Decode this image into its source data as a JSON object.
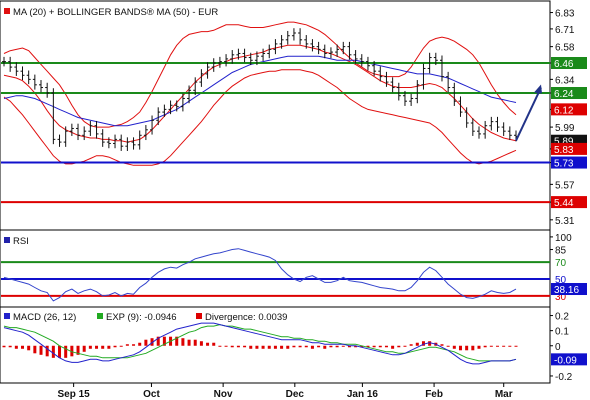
{
  "colors": {
    "ma20": "#e01010",
    "bollinger": "#e01010",
    "ma50": "#2222cc",
    "price": "#111111",
    "support_green": "#1a8a1a",
    "blue_line": "#1010cc",
    "red_line": "#dd0000",
    "arrow": "#223388",
    "rsi_line": "#3344cc",
    "macd_line": "#2222cc",
    "signal_line": "#22aa22",
    "divergence": "#dd0000",
    "frame": "#000000"
  },
  "chart_data": [
    {
      "type": "line",
      "title": "MA (20) + BOLLINGER BANDS® MA (50) - EUR",
      "legend": [
        "MA (20) + BOLLINGER BANDS®",
        "MA (50) - EUR"
      ],
      "legend_placement": "top-left",
      "ylim": [
        5.25,
        6.9
      ],
      "y_ticks": [
        6.83,
        6.71,
        6.58,
        6.46,
        6.34,
        6.24,
        6.12,
        5.99,
        5.83,
        5.73,
        5.57,
        5.44,
        5.31
      ],
      "x_ticks": [
        "Sep 15",
        "Oct",
        "Nov",
        "Dec",
        "Jan 16",
        "Feb",
        "Mar"
      ],
      "x_tick_pos": [
        0.17,
        0.36,
        0.535,
        0.71,
        0.875,
        1.05,
        1.22
      ],
      "horizontal_lines": [
        {
          "label": "6.46",
          "value": 6.46,
          "color": "#1a8a1a"
        },
        {
          "label": "6.24",
          "value": 6.24,
          "color": "#1a8a1a"
        },
        {
          "label": "5.73",
          "value": 5.73,
          "color": "#1010cc"
        },
        {
          "label": "5.44",
          "value": 5.44,
          "color": "#dd0000"
        }
      ],
      "value_tags": [
        {
          "label": "6.12",
          "value": 6.12,
          "color": "#dd0000"
        },
        {
          "label": "5.89",
          "value": 5.89,
          "color": "#111111"
        },
        {
          "label": "5.83",
          "value": 5.83,
          "color": "#dd0000"
        }
      ],
      "close": [
        6.47,
        6.43,
        6.4,
        6.37,
        6.34,
        6.3,
        6.28,
        6.24,
        5.9,
        5.88,
        5.96,
        5.98,
        5.93,
        5.96,
        6.0,
        5.94,
        5.88,
        5.87,
        5.9,
        5.85,
        5.88,
        5.86,
        5.93,
        5.97,
        6.04,
        6.1,
        6.12,
        6.15,
        6.14,
        6.2,
        6.26,
        6.32,
        6.38,
        6.43,
        6.46,
        6.47,
        6.49,
        6.52,
        6.53,
        6.5,
        6.48,
        6.51,
        6.53,
        6.56,
        6.6,
        6.63,
        6.66,
        6.68,
        6.63,
        6.6,
        6.58,
        6.56,
        6.53,
        6.54,
        6.56,
        6.58,
        6.52,
        6.49,
        6.47,
        6.44,
        6.4,
        6.36,
        6.32,
        6.28,
        6.22,
        6.18,
        6.2,
        6.3,
        6.42,
        6.5,
        6.48,
        6.36,
        6.28,
        6.18,
        6.1,
        6.02,
        5.96,
        5.94,
        6.0,
        6.03,
        5.99,
        5.96,
        5.93,
        5.92
      ],
      "ma20": [
        6.37,
        6.36,
        6.35,
        6.33,
        6.29,
        6.24,
        6.18,
        6.11,
        6.05,
        6.0,
        5.97,
        5.95,
        5.93,
        5.92,
        5.91,
        5.91,
        5.9,
        5.9,
        5.89,
        5.89,
        5.88,
        5.89,
        5.9,
        5.93,
        5.97,
        6.02,
        6.07,
        6.12,
        6.17,
        6.22,
        6.27,
        6.32,
        6.36,
        6.4,
        6.43,
        6.45,
        6.47,
        6.49,
        6.5,
        6.51,
        6.52,
        6.53,
        6.54,
        6.56,
        6.57,
        6.58,
        6.59,
        6.59,
        6.59,
        6.58,
        6.57,
        6.56,
        6.54,
        6.53,
        6.51,
        6.49,
        6.47,
        6.45,
        6.42,
        6.39,
        6.36,
        6.33,
        6.31,
        6.29,
        6.28,
        6.28,
        6.28,
        6.29,
        6.3,
        6.31,
        6.3,
        6.28,
        6.24,
        6.2,
        6.15,
        6.1,
        6.05,
        6.01,
        5.98,
        5.95,
        5.93,
        5.91,
        5.9,
        5.89
      ],
      "bb_upper": [
        6.53,
        6.55,
        6.56,
        6.57,
        6.55,
        6.5,
        6.45,
        6.4,
        6.35,
        6.3,
        6.23,
        6.15,
        6.08,
        6.03,
        6.0,
        5.99,
        5.99,
        5.99,
        6.0,
        6.01,
        6.03,
        6.06,
        6.1,
        6.17,
        6.25,
        6.34,
        6.43,
        6.52,
        6.59,
        6.64,
        6.67,
        6.68,
        6.69,
        6.69,
        6.7,
        6.72,
        6.74,
        6.74,
        6.74,
        6.73,
        6.72,
        6.72,
        6.72,
        6.73,
        6.74,
        6.75,
        6.76,
        6.76,
        6.75,
        6.74,
        6.72,
        6.7,
        6.67,
        6.63,
        6.59,
        6.54,
        6.5,
        6.46,
        6.43,
        6.4,
        6.38,
        6.37,
        6.36,
        6.36,
        6.36,
        6.38,
        6.43,
        6.5,
        6.57,
        6.62,
        6.64,
        6.65,
        6.64,
        6.62,
        6.59,
        6.56,
        6.52,
        6.46,
        6.38,
        6.3,
        6.23,
        6.17,
        6.12,
        6.08
      ],
      "bb_lower": [
        6.21,
        6.18,
        6.13,
        6.08,
        6.02,
        5.96,
        5.9,
        5.84,
        5.78,
        5.74,
        5.72,
        5.72,
        5.73,
        5.74,
        5.76,
        5.78,
        5.78,
        5.77,
        5.75,
        5.73,
        5.72,
        5.71,
        5.71,
        5.71,
        5.71,
        5.72,
        5.74,
        5.78,
        5.83,
        5.88,
        5.93,
        5.98,
        6.03,
        6.09,
        6.15,
        6.2,
        6.25,
        6.29,
        6.32,
        6.35,
        6.37,
        6.38,
        6.39,
        6.4,
        6.4,
        6.41,
        6.41,
        6.41,
        6.41,
        6.4,
        6.39,
        6.37,
        6.34,
        6.31,
        6.28,
        6.24,
        6.2,
        6.17,
        6.14,
        6.12,
        6.11,
        6.1,
        6.09,
        6.08,
        6.07,
        6.06,
        6.05,
        6.04,
        6.03,
        6.02,
        5.99,
        5.95,
        5.9,
        5.85,
        5.8,
        5.76,
        5.73,
        5.72,
        5.73,
        5.74,
        5.76,
        5.78,
        5.8,
        5.82
      ],
      "ma50": [
        6.2,
        6.21,
        6.22,
        6.22,
        6.21,
        6.2,
        6.18,
        6.16,
        6.14,
        6.12,
        6.1,
        6.08,
        6.06,
        6.05,
        6.04,
        6.03,
        6.02,
        6.01,
        6.0,
        6.0,
        6.0,
        6.01,
        6.02,
        6.03,
        6.04,
        6.06,
        6.08,
        6.1,
        6.12,
        6.15,
        6.18,
        6.21,
        6.24,
        6.27,
        6.3,
        6.33,
        6.36,
        6.39,
        6.41,
        6.43,
        6.45,
        6.46,
        6.47,
        6.48,
        6.49,
        6.5,
        6.51,
        6.51,
        6.51,
        6.51,
        6.51,
        6.51,
        6.5,
        6.49,
        6.48,
        6.48,
        6.48,
        6.48,
        6.47,
        6.46,
        6.45,
        6.44,
        6.43,
        6.42,
        6.41,
        6.4,
        6.39,
        6.38,
        6.38,
        6.38,
        6.37,
        6.36,
        6.35,
        6.33,
        6.31,
        6.29,
        6.27,
        6.25,
        6.23,
        6.21,
        6.2,
        6.19,
        6.18,
        6.17
      ],
      "arrow": {
        "from": 5.89,
        "to": 6.28
      }
    },
    {
      "type": "line",
      "title": "RSI",
      "legend": [
        "RSI"
      ],
      "ylim": [
        18,
        107
      ],
      "y_ticks": [
        100,
        85,
        70,
        50,
        38.16,
        30
      ],
      "horizontal_lines": [
        {
          "label": "70",
          "value": 70,
          "color": "#1a8a1a"
        },
        {
          "label": "50",
          "value": 50,
          "color": "#1010cc"
        },
        {
          "label": "30",
          "value": 30,
          "color": "#dd0000"
        }
      ],
      "value_tags": [
        {
          "label": "38.16",
          "value": 38.16,
          "color": "#1010cc"
        }
      ],
      "values": [
        52,
        50,
        48,
        46,
        44,
        40,
        36,
        34,
        24,
        28,
        35,
        38,
        33,
        36,
        38,
        35,
        30,
        31,
        34,
        30,
        33,
        32,
        40,
        45,
        52,
        58,
        62,
        64,
        63,
        67,
        70,
        74,
        76,
        78,
        80,
        81,
        83,
        85,
        86,
        84,
        82,
        80,
        78,
        76,
        72,
        62,
        55,
        50,
        47,
        52,
        54,
        50,
        46,
        46,
        48,
        52,
        48,
        47,
        46,
        44,
        42,
        40,
        39,
        38,
        36,
        36,
        40,
        48,
        58,
        64,
        60,
        52,
        44,
        38,
        32,
        28,
        27,
        29,
        32,
        36,
        34,
        33,
        34,
        38
      ]
    },
    {
      "type": "bar",
      "title": "MACD (26, 12)",
      "legend": [
        "MACD (26, 12)",
        "EXP (9): -0.0946",
        "Divergence: 0.0039"
      ],
      "ylim": [
        -0.24,
        0.25
      ],
      "y_ticks": [
        0.2,
        0.1,
        0,
        -0.09,
        -0.2
      ],
      "value_tags": [
        {
          "label": "-0.09",
          "value": -0.09,
          "color": "#1010cc"
        }
      ],
      "macd": [
        0.12,
        0.11,
        0.1,
        0.09,
        0.07,
        0.04,
        0.01,
        -0.02,
        -0.05,
        -0.08,
        -0.1,
        -0.11,
        -0.11,
        -0.1,
        -0.09,
        -0.09,
        -0.1,
        -0.1,
        -0.09,
        -0.08,
        -0.07,
        -0.06,
        -0.04,
        -0.01,
        0.02,
        0.05,
        0.07,
        0.09,
        0.11,
        0.12,
        0.13,
        0.14,
        0.15,
        0.15,
        0.15,
        0.14,
        0.13,
        0.12,
        0.11,
        0.1,
        0.09,
        0.08,
        0.07,
        0.06,
        0.05,
        0.04,
        0.04,
        0.04,
        0.04,
        0.03,
        0.02,
        0.02,
        0.01,
        0.01,
        0.01,
        0.01,
        0.0,
        0.0,
        -0.01,
        -0.02,
        -0.03,
        -0.04,
        -0.05,
        -0.06,
        -0.06,
        -0.05,
        -0.03,
        -0.01,
        0.01,
        0.02,
        0.01,
        -0.01,
        -0.03,
        -0.06,
        -0.09,
        -0.11,
        -0.12,
        -0.12,
        -0.11,
        -0.1,
        -0.1,
        -0.1,
        -0.1,
        -0.09
      ],
      "signal": [
        0.13,
        0.12,
        0.12,
        0.11,
        0.1,
        0.09,
        0.07,
        0.05,
        0.03,
        0.0,
        -0.02,
        -0.04,
        -0.05,
        -0.06,
        -0.07,
        -0.07,
        -0.08,
        -0.08,
        -0.08,
        -0.08,
        -0.08,
        -0.07,
        -0.06,
        -0.05,
        -0.03,
        -0.01,
        0.01,
        0.03,
        0.05,
        0.07,
        0.09,
        0.1,
        0.12,
        0.13,
        0.13,
        0.14,
        0.13,
        0.13,
        0.12,
        0.11,
        0.11,
        0.1,
        0.09,
        0.08,
        0.07,
        0.06,
        0.06,
        0.05,
        0.05,
        0.04,
        0.04,
        0.03,
        0.03,
        0.02,
        0.02,
        0.01,
        0.01,
        0.01,
        0.0,
        -0.01,
        -0.02,
        -0.03,
        -0.04,
        -0.04,
        -0.05,
        -0.05,
        -0.04,
        -0.03,
        -0.02,
        -0.01,
        -0.01,
        -0.02,
        -0.03,
        -0.04,
        -0.06,
        -0.08,
        -0.09,
        -0.1,
        -0.1,
        -0.1,
        -0.1,
        -0.1,
        -0.1,
        -0.09
      ],
      "divergence": [
        -0.01,
        -0.01,
        -0.02,
        -0.02,
        -0.03,
        -0.05,
        -0.06,
        -0.07,
        -0.08,
        -0.08,
        -0.08,
        -0.07,
        -0.06,
        -0.04,
        -0.02,
        -0.02,
        -0.02,
        -0.02,
        -0.01,
        0.0,
        0.01,
        0.01,
        0.02,
        0.04,
        0.05,
        0.06,
        0.06,
        0.06,
        0.06,
        0.05,
        0.04,
        0.04,
        0.03,
        0.02,
        0.02,
        0.0,
        0.0,
        -0.01,
        -0.01,
        -0.01,
        -0.02,
        -0.02,
        -0.02,
        -0.02,
        -0.02,
        -0.02,
        -0.02,
        -0.01,
        -0.01,
        -0.01,
        -0.02,
        -0.01,
        -0.02,
        -0.01,
        -0.01,
        0.0,
        -0.01,
        -0.01,
        -0.01,
        -0.01,
        -0.01,
        -0.01,
        -0.01,
        -0.02,
        -0.01,
        0.0,
        0.01,
        0.02,
        0.03,
        0.03,
        0.02,
        0.01,
        0.0,
        -0.02,
        -0.03,
        -0.03,
        -0.03,
        -0.02,
        -0.01,
        0.0,
        0.0,
        0.0,
        0.0,
        0.0
      ]
    }
  ]
}
